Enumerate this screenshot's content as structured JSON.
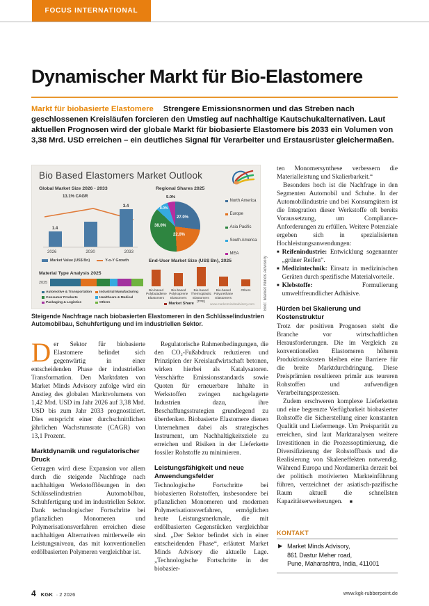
{
  "page": {
    "banner": "FOCUS INTERNATIONAL",
    "footer_page": "4",
    "footer_mag": "KGK",
    "footer_issue": "· 2 2026",
    "footer_url": "www.kgk-rubberpoint.de"
  },
  "article": {
    "title": "Dynamischer Markt für Bio-Elastomere",
    "kicker": "Markt für biobasierte Elastomere",
    "lead": "Strengere Emissionsnormen und das Streben nach geschlossenen Kreisläufen forcieren den Umstieg auf nachhaltige Kautschukalternativen. Laut aktuellen Prognosen wird der globale Markt für biobasierte Elastomere bis 2033 ein Volumen von 3,38 Mrd. USD erreichen – ein deutliches Signal für Verarbeiter und Erstausrüster gleichermaßen.",
    "caption": "Steigende Nachfrage nach biobasierten Elastomeren in den Schlüsselindustrien Automobilbau, Schuhfertigung und im industriellen Sektor.",
    "credit": "Bild: Market Minds Advisory",
    "dropcap": "D",
    "col1": {
      "p1": "er Sektor für biobasierte Elastomere befindet sich gegenwärtig in einer entscheidenden Phase der industriellen Transformation. Den Marktdaten von Market Minds Advisory zufolge wird ein Anstieg des globalen Marktvolumens von 1,42 Mrd. USD im Jahr 2026 auf 3,38 Mrd. USD bis zum Jahr 2033 prognostiziert. Dies entspricht einer durchschnittlichen jährlichen Wachstumsrate (CAGR) von 13,1 Prozent.",
      "h1": "Marktdynamik und regulatorischer Druck",
      "p2": "Getragen wird diese Expansion vor allem durch die steigende Nachfrage nach nachhaltigen Werkstofflösungen in den Schlüsselindustrien Automobilbau, Schuhfertigung und im industriellen Sektor. Dank technologischer Fortschritte bei pflanzlichen Monomeren und Polymerisationsverfahren erreichen diese nachhaltigen Alternativen mittlerweile ein Leistungsniveau, das mit konventionellen erdölbasierten Polymeren vergleichbar ist."
    },
    "col2": {
      "p1": "Regulatorische Rahmenbedingungen, die den CO₂-Fußabdruck reduzieren und Prinzipien der Kreislaufwirtschaft betonen, wirken hierbei als Katalysatoren. Verschärfte Emissionsstandards sowie Quoten für erneuerbare Inhalte in Werkstoffen zwingen nachgelagerte Industrien dazu, ihre Beschaffungsstrategien grundlegend zu überdenken. Biobasierte Elastomere dienen Unternehmen dabei als strategisches Instrument, um Nachhaltigkeitsziele zu erreichen und Risiken in der Lieferkette fossiler Rohstoffe zu minimieren.",
      "h1": "Leistungsfähigkeit und neue Anwendungsfelder",
      "p2": "Technologische Fortschritte bei biobasierten Rohstoffen, insbesondere bei pflanzlichen Monomeren und modernen Polymerisationsverfahren, ermöglichen heute Leistungsmerkmale, die mit erdölbasierten Gegenstücken vergleichbar sind. „Der Sektor befindet sich in einer entscheidenden Phase“, erläutert Market Minds Advisory die aktuelle Lage. „Technologische Fortschritte in der biobasier-"
    },
    "col3": {
      "p1": "ten Monomersynthese verbessern die Materialleistung und Skalierbarkeit.“",
      "p2": "Besonders hoch ist die Nachfrage in den Segmenten Automobil und Schuhe. In der Automobilindustrie und bei Konsumgütern ist die Integration dieser Werkstoffe oft bereits Voraussetzung, um Compliance-Anforderungen zu erfüllen. Weitere Potenziale ergeben sich in spezialisierten Hochleistungsanwendungen:",
      "bullets": [
        {
          "term": "Reifenindustrie:",
          "desc": " Entwicklung sogenannter „grüner Reifen“."
        },
        {
          "term": "Medizintechnik:",
          "desc": " Einsatz in medizinischen Geräten durch spezifische Materialvorteile."
        },
        {
          "term": "Klebstoffe:",
          "desc": " Formulierung umweltfreundlicher Adhäsive."
        }
      ],
      "h1": "Hürden bei Skalierung und Kostenstruktur",
      "p3": "Trotz der positiven Prognosen steht die Branche vor wirtschaftlichen Herausforderungen. Die im Vergleich zu konventionellen Elastomeren höheren Produktionskosten bleiben eine Barriere für die breite Marktdurchdringung. Diese Preisprämien resultieren primär aus teureren Rohstoffen und aufwendigen Verarbeitungsprozessen.",
      "p4": "Zudem erschweren komplexe Lieferketten und eine begrenzte Verfügbarkeit biobasierter Rohstoffe die Sicherstellung einer konstanten Qualität und Liefermenge. Um Preisparität zu erreichen, sind laut Marktanalysen weitere Investitionen in die Prozessoptimierung, die Diversifizierung der Rohstoffbasis und die Realisierung von Skaleneffekten notwendig. Während Europa und Nordamerika derzeit bei der politisch motivierten Markteinführung führen, verzeichnet der asiatisch-pazifische Raum aktuell die schnellsten Kapazitätserweiterungen.",
      "end_mark": "■"
    },
    "kontakt": {
      "heading": "KONTAKT",
      "arrow": "▶",
      "line1": "Market Minds Advisory,",
      "line2": "861 Dastur Meher road,",
      "line3": "Pune, Maharashtra, India, 411001"
    }
  },
  "infographic": {
    "title": "Bio Based Elastomers Market Outlook",
    "watermark": "www.marketmindsadvisory.com"
  },
  "chart_data": [
    {
      "type": "bar",
      "title": "Global Market Size 2026 - 2033",
      "categories": [
        "2026",
        "2030",
        "2033"
      ],
      "values": [
        1.4,
        2.3,
        3.4
      ],
      "value_labels": [
        "1.4",
        "",
        "3.4"
      ],
      "ylim": [
        0,
        4
      ],
      "ylabel": "US$ Bn",
      "legend": [
        "Market Value (US$ Bn)",
        "Y-o-Y Growth"
      ],
      "annotation": "13.1% CAGR",
      "bar_color": "#4a7ba6",
      "line_color": "#e07b39",
      "grid": false
    },
    {
      "type": "pie",
      "title": "Regional Shares 2025",
      "categories": [
        "North America",
        "Europe",
        "Asia Pacific",
        "South America",
        "MEA"
      ],
      "values": [
        27,
        22,
        38,
        8,
        5
      ],
      "labels": [
        "27.0%",
        "22.0%",
        "38.0%",
        "8.0%",
        "5.0%"
      ],
      "colors": [
        "#41719c",
        "#e2711d",
        "#2e8540",
        "#35aadf",
        "#b62ea0"
      ],
      "legend_position": "right"
    },
    {
      "type": "bar",
      "subtype": "stacked-horizontal",
      "title": "Material Type Analysis 2025",
      "row_label": "2025",
      "categories": [
        "Automotive & Transportation",
        "Industrial Manufacturing",
        "Consumer Products",
        "Healthcare & Medical",
        "Packaging & Logistics",
        "Others"
      ],
      "values": [
        33,
        17,
        14,
        8,
        15,
        13
      ],
      "colors": [
        "#31708f",
        "#e2711d",
        "#2e8540",
        "#35aadf",
        "#a3319f",
        "#6fb33f"
      ]
    },
    {
      "type": "bar",
      "title": "End-User Market Size (US$ Bn), 2025",
      "categories": [
        "Bio-based Polybutadiene Elastomers",
        "Bio-based Polyisoprene Elastomers",
        "Bio-based Thermoplastic Elastomers (TPE)",
        "Bio-based Polyurethane Elastomers",
        "Others"
      ],
      "values": [
        0.55,
        0.45,
        0.65,
        0.33,
        0.24
      ],
      "ylim": [
        0,
        0.7
      ],
      "legend": [
        "Market Share"
      ],
      "bar_color": "#c4511e",
      "legend_color": "#9e2b25"
    }
  ],
  "colors": {
    "accent_orange": "#e87f10",
    "kicker_orange": "#e8890c",
    "rule_orange": "#e8962e",
    "figure_bg": "#efede9"
  }
}
